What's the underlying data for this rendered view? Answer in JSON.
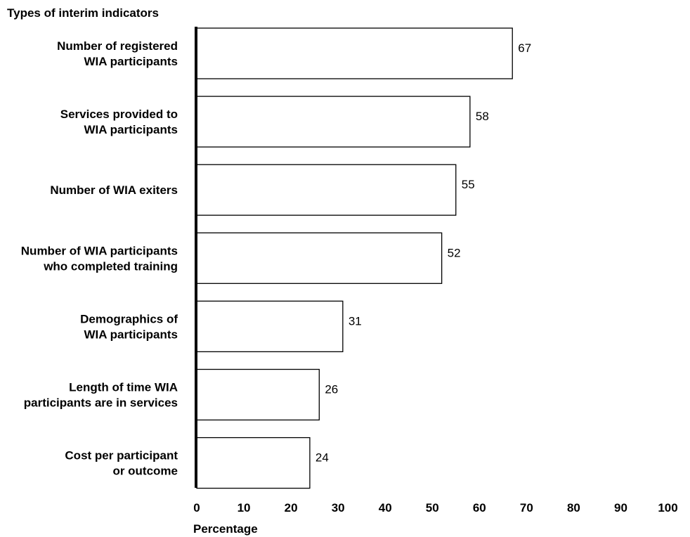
{
  "chart_data": {
    "type": "bar",
    "orientation": "horizontal",
    "title": "",
    "ylabel": "Types of interim indicators",
    "xlabel": "Percentage",
    "xlim": [
      0,
      100
    ],
    "xticks": [
      0,
      10,
      20,
      30,
      40,
      50,
      60,
      70,
      80,
      90,
      100
    ],
    "grid": false,
    "categories": [
      [
        "Number of registered",
        "WIA participants"
      ],
      [
        "Services provided to",
        "WIA participants"
      ],
      [
        "Number of WIA exiters"
      ],
      [
        "Number of WIA participants",
        "who completed training"
      ],
      [
        "Demographics of",
        "WIA participants"
      ],
      [
        "Length of time WIA",
        "participants are in services"
      ],
      [
        "Cost per participant",
        "or outcome"
      ]
    ],
    "values": [
      67,
      58,
      55,
      52,
      31,
      26,
      24
    ],
    "colors": {
      "bar_fill": "#ffffff",
      "bar_stroke": "#000000",
      "axis": "#000000"
    }
  }
}
